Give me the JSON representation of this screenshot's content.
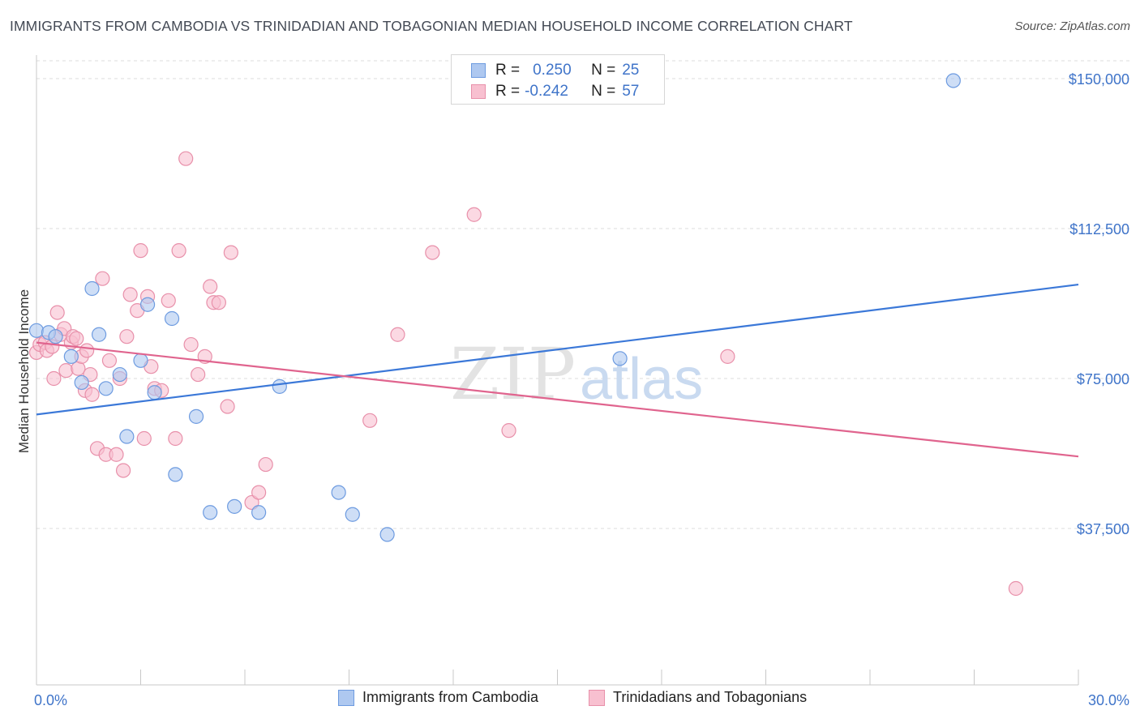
{
  "title": "IMMIGRANTS FROM CAMBODIA VS TRINIDADIAN AND TOBAGONIAN MEDIAN HOUSEHOLD INCOME CORRELATION CHART",
  "source": "Source: ZipAtlas.com",
  "watermark": {
    "zip": "ZIP",
    "atlas": "atlas"
  },
  "legend": {
    "rows": [
      {
        "r_label": "R =",
        "r_value": "0.250",
        "n_label": "N =",
        "n_value": "25"
      },
      {
        "r_label": "R =",
        "r_value": "-0.242",
        "n_label": "N =",
        "n_value": "57"
      }
    ]
  },
  "colors": {
    "blue_fill": "#aec8f0",
    "blue_stroke": "#6d9be0",
    "blue_line": "#3b78d8",
    "pink_fill": "#f8c0d0",
    "pink_stroke": "#e890aa",
    "pink_line": "#e0648e",
    "tick_label": "#3f74c9",
    "grid": "#dcdcdc"
  },
  "chart_data": {
    "type": "scatter",
    "title": "IMMIGRANTS FROM CAMBODIA VS TRINIDADIAN AND TOBAGONIAN MEDIAN HOUSEHOLD INCOME CORRELATION CHART",
    "xlabel": "",
    "ylabel": "Median Household Income",
    "xlim": [
      0,
      30
    ],
    "ylim": [
      0,
      155000
    ],
    "x_tick_labels": [
      "0.0%",
      "30.0%"
    ],
    "y_ticks": [
      37500,
      75000,
      112500,
      150000
    ],
    "y_tick_labels": [
      "$37,500",
      "$75,000",
      "$112,500",
      "$150,000"
    ],
    "grid": true,
    "legend_position": "top-center",
    "series": [
      {
        "name": "Immigrants from Cambodia",
        "r": 0.25,
        "n": 25,
        "trend": {
          "x": [
            0,
            30
          ],
          "y": [
            66000,
            98500
          ]
        },
        "points": [
          [
            0.0,
            87000
          ],
          [
            0.35,
            86500
          ],
          [
            0.55,
            85500
          ],
          [
            1.0,
            80500
          ],
          [
            1.3,
            74000
          ],
          [
            1.6,
            97500
          ],
          [
            1.8,
            86000
          ],
          [
            2.0,
            72500
          ],
          [
            2.4,
            76000
          ],
          [
            2.6,
            60500
          ],
          [
            3.0,
            79500
          ],
          [
            3.2,
            93500
          ],
          [
            3.4,
            71500
          ],
          [
            3.9,
            90000
          ],
          [
            4.0,
            51000
          ],
          [
            4.6,
            65500
          ],
          [
            5.0,
            41500
          ],
          [
            5.7,
            43000
          ],
          [
            6.4,
            41500
          ],
          [
            7.0,
            73000
          ],
          [
            8.7,
            46500
          ],
          [
            9.1,
            41000
          ],
          [
            10.1,
            36000
          ],
          [
            16.8,
            80000
          ],
          [
            26.4,
            149500
          ]
        ]
      },
      {
        "name": "Trinidadians and Tobagonians",
        "r": -0.242,
        "n": 57,
        "trend": {
          "x": [
            0,
            30
          ],
          "y": [
            84000,
            55500
          ]
        },
        "points": [
          [
            0.0,
            81500
          ],
          [
            0.1,
            83500
          ],
          [
            0.25,
            84000
          ],
          [
            0.3,
            82000
          ],
          [
            0.45,
            83000
          ],
          [
            0.5,
            75000
          ],
          [
            0.6,
            91500
          ],
          [
            0.7,
            86000
          ],
          [
            0.8,
            87500
          ],
          [
            0.85,
            77000
          ],
          [
            1.0,
            84000
          ],
          [
            1.05,
            85500
          ],
          [
            1.15,
            85000
          ],
          [
            1.2,
            77500
          ],
          [
            1.3,
            80500
          ],
          [
            1.4,
            72000
          ],
          [
            1.45,
            82000
          ],
          [
            1.55,
            76000
          ],
          [
            1.6,
            71000
          ],
          [
            1.75,
            57500
          ],
          [
            1.9,
            100000
          ],
          [
            2.0,
            56000
          ],
          [
            2.1,
            79500
          ],
          [
            2.3,
            56000
          ],
          [
            2.4,
            75000
          ],
          [
            2.5,
            52000
          ],
          [
            2.6,
            85500
          ],
          [
            2.7,
            96000
          ],
          [
            2.9,
            92000
          ],
          [
            3.0,
            107000
          ],
          [
            3.1,
            60000
          ],
          [
            3.2,
            95500
          ],
          [
            3.3,
            78000
          ],
          [
            3.4,
            72500
          ],
          [
            3.6,
            72000
          ],
          [
            3.8,
            94500
          ],
          [
            4.0,
            60000
          ],
          [
            4.1,
            107000
          ],
          [
            4.3,
            130000
          ],
          [
            4.45,
            83500
          ],
          [
            4.65,
            76000
          ],
          [
            4.85,
            80500
          ],
          [
            5.0,
            98000
          ],
          [
            5.1,
            94000
          ],
          [
            5.25,
            94000
          ],
          [
            5.5,
            68000
          ],
          [
            5.6,
            106500
          ],
          [
            6.2,
            44000
          ],
          [
            6.4,
            46500
          ],
          [
            6.6,
            53500
          ],
          [
            9.6,
            64500
          ],
          [
            10.4,
            86000
          ],
          [
            11.4,
            106500
          ],
          [
            12.6,
            116000
          ],
          [
            13.6,
            62000
          ],
          [
            19.9,
            80500
          ],
          [
            28.2,
            22500
          ]
        ]
      }
    ]
  }
}
